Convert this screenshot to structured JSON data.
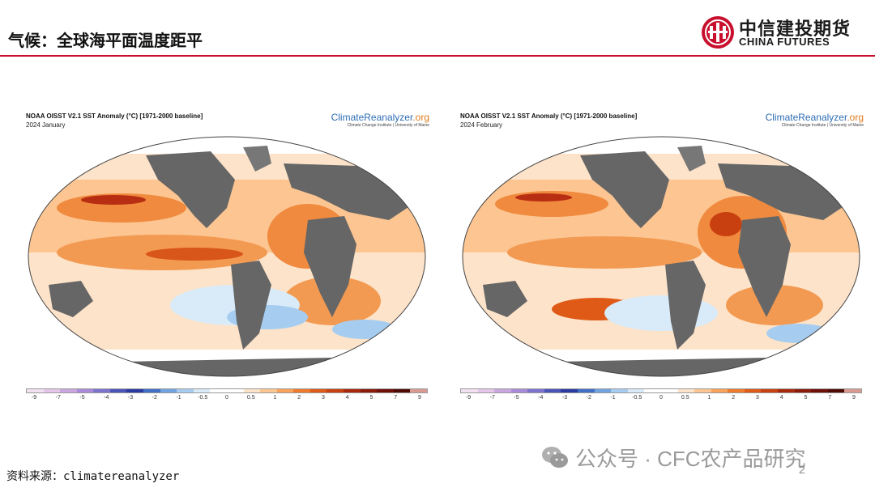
{
  "header": {
    "title": "气候：全球海平面温度距平"
  },
  "logo": {
    "name_cn": "中信建投期货",
    "name_en": "CHINA FUTURES"
  },
  "maps": [
    {
      "title": "NOAA OISST V2.1 SST Anomaly (°C) [1971-2000 baseline]",
      "subtitle": "2024 January",
      "brand_main": "ClimateReanalyzer",
      "brand_tld": ".org",
      "brand_sub": "Climate Change Institute | University of Maine"
    },
    {
      "title": "NOAA OISST V2.1 SST Anomaly (°C) [1971-2000 baseline]",
      "subtitle": "2024 February",
      "brand_main": "ClimateReanalyzer",
      "brand_tld": ".org",
      "brand_sub": "Climate Change Institute | University of Maine"
    }
  ],
  "colorbar": {
    "ticks": [
      "-9",
      "-7",
      "-5",
      "-4",
      "-3",
      "-2",
      "-1",
      "-0.5",
      "0",
      "0.5",
      "1",
      "2",
      "3",
      "4",
      "5",
      "7",
      "9"
    ],
    "colors": [
      "#f3e1f0",
      "#e3c6ea",
      "#c9a6e0",
      "#a88ad9",
      "#7d73cf",
      "#4b52b8",
      "#2a3aa0",
      "#3f6fc7",
      "#6fa4e0",
      "#a6cdf0",
      "#d9ebf8",
      "#ffffff",
      "#ffffff",
      "#fde3c9",
      "#fcc591",
      "#f9a25a",
      "#f07a2c",
      "#e05a17",
      "#c8400f",
      "#a8280c",
      "#8a1a0a",
      "#6e0f08",
      "#4e0a05",
      "#d99b91"
    ]
  },
  "footer": {
    "source": "资料来源：climatereanalyzer",
    "watermark": "公众号 · CFC农产品研究",
    "page": "2"
  }
}
